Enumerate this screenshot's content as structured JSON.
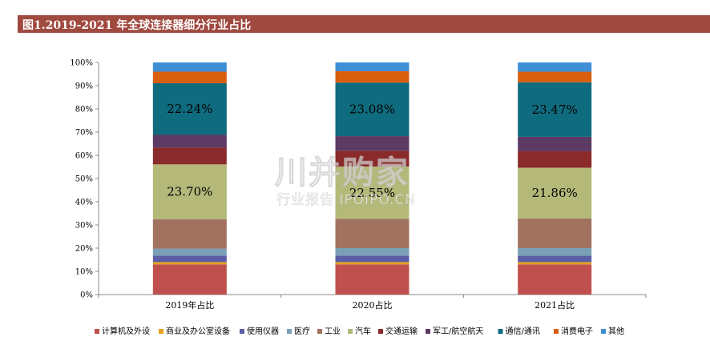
{
  "header": {
    "title": "图1.2019-2021 年全球连接器细分行业占比"
  },
  "watermark": {
    "main": "川并购家",
    "sub": "行业报告 IPOIPO.CN"
  },
  "chart_data": {
    "type": "bar",
    "stacked": true,
    "categories": [
      "2019年占比",
      "2020占比",
      "2021占比"
    ],
    "ylim": [
      0,
      100
    ],
    "yticks": [
      "0%",
      "10%",
      "20%",
      "30%",
      "40%",
      "50%",
      "60%",
      "70%",
      "80%",
      "90%",
      "100%"
    ],
    "grid": false,
    "legend_position": "bottom",
    "series": [
      {
        "name": "计算机及外设",
        "color": "#c0504d",
        "values": [
          13.0,
          13.0,
          13.0
        ]
      },
      {
        "name": "商业及办公室设备",
        "color": "#e6a01c",
        "values": [
          1.0,
          1.0,
          1.0
        ]
      },
      {
        "name": "使用仪器",
        "color": "#5b5ea6",
        "values": [
          2.8,
          2.8,
          2.7
        ]
      },
      {
        "name": "医疗",
        "color": "#7aa0b5",
        "values": [
          3.0,
          3.2,
          3.3
        ]
      },
      {
        "name": "工业",
        "color": "#a27260",
        "values": [
          12.6,
          12.6,
          12.8
        ]
      },
      {
        "name": "汽车",
        "color": "#b4b97a",
        "values": [
          23.7,
          22.55,
          21.86
        ]
      },
      {
        "name": "交通运输",
        "color": "#8b2a2a",
        "values": [
          7.2,
          6.8,
          7.1
        ]
      },
      {
        "name": "军工/航空航天",
        "color": "#5c3a63",
        "values": [
          5.5,
          6.3,
          6.2
        ]
      },
      {
        "name": "通信/通讯",
        "color": "#0f6b7e",
        "values": [
          22.24,
          23.08,
          23.47
        ]
      },
      {
        "name": "消费电子",
        "color": "#d95f0e",
        "values": [
          5.0,
          4.9,
          4.6
        ]
      },
      {
        "name": "其他",
        "color": "#3f8fd6",
        "values": [
          3.96,
          3.77,
          3.96
        ]
      }
    ],
    "data_labels": [
      {
        "series": "汽车",
        "texts": [
          "23.70%",
          "22.55%",
          "21.86%"
        ]
      },
      {
        "series": "通信/通讯",
        "texts": [
          "22.24%",
          "23.08%",
          "23.47%"
        ]
      }
    ]
  }
}
